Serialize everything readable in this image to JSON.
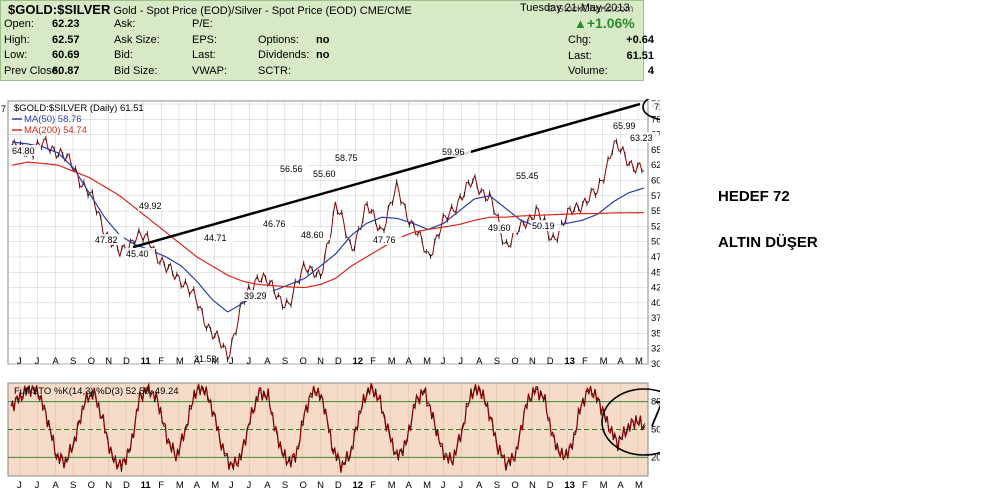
{
  "header": {
    "symbol": "$GOLD:$SILVER",
    "description": "Gold - Spot Price (EOD)/Silver - Spot Price (EOD)",
    "exchange": "CME/CME",
    "logo": "© StockCharts.com"
  },
  "quote": {
    "date": "Tuesday  21-May-2013",
    "change_pct": "+1.06%",
    "rows": [
      {
        "l1": "Open:",
        "v1": "62.23",
        "l2": "Ask:",
        "v2": "",
        "l3": "P/E:",
        "v3": "",
        "l4": "",
        "v4": ""
      },
      {
        "l1": "High:",
        "v1": "62.57",
        "l2": "Ask Size:",
        "v2": "",
        "l3": "EPS:",
        "v3": "",
        "l4": "Options:",
        "v4": "no"
      },
      {
        "l1": "Low:",
        "v1": "60.69",
        "l2": "Bid:",
        "v2": "",
        "l3": "Last:",
        "v3": "",
        "l4": "Dividends:",
        "v4": "no"
      },
      {
        "l1": "Prev Close:",
        "v1": "60.87",
        "l2": "Bid Size:",
        "v2": "",
        "l3": "VWAP:",
        "v3": "",
        "l4": "SCTR:",
        "v4": ""
      }
    ],
    "right": [
      {
        "label": "Chg:",
        "value": "+0.64"
      },
      {
        "label": "Last:",
        "value": "61.51"
      },
      {
        "label": "Volume:",
        "value": "4"
      }
    ]
  },
  "annotations": {
    "target": "HEDEF 72",
    "note": "ALTIN DÜŞER"
  },
  "colors": {
    "price": "#8b0000",
    "ma50": "#2b3fa8",
    "ma200": "#d42a1a",
    "trendline": "#000000",
    "panel_bg": "#f5c9a4",
    "sto_bg": "#f6dcc8",
    "sto_line": "#8b0000",
    "grid": "#c9c9c9"
  },
  "chart_data": [
    {
      "type": "line",
      "legend": [
        {
          "text": "$GOLD:$SILVER (Daily) 61.51"
        },
        {
          "text": "MA(50) 58.76"
        },
        {
          "text": "MA(200) 54.74"
        }
      ],
      "x_ticks": [
        "J",
        "J",
        "A",
        "S",
        "O",
        "N",
        "D",
        "11",
        "F",
        "M",
        "A",
        "M",
        "J",
        "J",
        "A",
        "S",
        "O",
        "N",
        "D",
        "12",
        "F",
        "M",
        "A",
        "M",
        "J",
        "J",
        "A",
        "S",
        "O",
        "N",
        "D",
        "13",
        "F",
        "M",
        "A",
        "M"
      ],
      "y_ticks": [
        "30.0",
        "32.5",
        "35.0",
        "37.5",
        "40.0",
        "42.5",
        "45.0",
        "47.5",
        "50.0",
        "52.5",
        "55.0",
        "57.5",
        "60.0",
        "62.5",
        "65.0",
        "67.5",
        "70.0",
        "72.5"
      ],
      "ylim": [
        30,
        73
      ],
      "axis_left_label": "7",
      "price_series": [
        65.5,
        64.8,
        65.8,
        65.0,
        62.0,
        58.0,
        52.0,
        47.82,
        51.0,
        49.92,
        45.4,
        44.0,
        40.0,
        35.0,
        31.53,
        40.0,
        44.71,
        42.0,
        39.29,
        46.76,
        43.5,
        56.56,
        48.6,
        55.6,
        52.0,
        58.75,
        52.5,
        47.76,
        53.0,
        57.0,
        59.96,
        57.0,
        49.6,
        52.0,
        55.45,
        50.19,
        54.0,
        56.5,
        58.0,
        65.99,
        63.23,
        61.51
      ],
      "ma50_series": [
        66.3,
        66.0,
        65.5,
        64.5,
        62.0,
        58.0,
        54.0,
        51.0,
        49.5,
        48.6,
        47.5,
        46.0,
        43.5,
        40.5,
        38.5,
        40.0,
        41.5,
        42.0,
        43.0,
        44.0,
        46.0,
        48.0,
        51.0,
        53.0,
        54.0,
        53.8,
        53.0,
        52.0,
        53.0,
        55.0,
        57.0,
        57.5,
        55.5,
        53.5,
        52.5,
        52.6,
        53.0,
        53.5,
        54.5,
        56.5,
        58.0,
        58.76
      ],
      "ma200_series": [
        62.5,
        63.0,
        62.8,
        62.5,
        61.5,
        60.5,
        59.0,
        57.5,
        55.5,
        53.5,
        51.5,
        49.5,
        47.5,
        46.0,
        44.5,
        43.5,
        43.0,
        42.8,
        42.6,
        42.5,
        43.0,
        44.0,
        46.0,
        47.5,
        49.0,
        50.5,
        51.5,
        52.0,
        52.4,
        52.8,
        53.5,
        54.0,
        54.0,
        54.2,
        54.3,
        54.4,
        54.5,
        54.6,
        54.6,
        54.7,
        54.72,
        54.74
      ],
      "trendline": {
        "start": 49.92,
        "end": 72.5
      },
      "data_labels": [
        "64.80",
        "47.82",
        "49.92",
        "45.40",
        "31.53",
        "44.71",
        "39.29",
        "46.76",
        "56.56",
        "48.60",
        "55.60",
        "58.75",
        "47.76",
        "59.96",
        "49.60",
        "55.45",
        "50.19",
        "65.99",
        "63.23",
        "72.5"
      ]
    },
    {
      "type": "line",
      "legend": [
        {
          "text": "Full STO %K(14,3) %D(3) 52.50, 49.24"
        }
      ],
      "y_ticks": [
        "20",
        "50",
        "80"
      ],
      "ylim": [
        0,
        100
      ],
      "k_series": [
        75,
        85,
        95,
        90,
        60,
        20,
        15,
        40,
        80,
        90,
        60,
        20,
        10,
        30,
        85,
        95,
        80,
        40,
        20,
        50,
        90,
        95,
        70,
        30,
        10,
        20,
        60,
        90,
        85,
        40,
        15,
        20,
        70,
        95,
        80,
        30,
        10,
        25,
        70,
        95,
        85,
        50,
        20,
        35,
        80,
        92,
        60,
        25,
        15,
        45,
        88,
        94,
        70,
        30,
        12,
        25,
        75,
        93,
        85,
        40,
        20,
        30,
        75,
        95,
        80,
        55,
        35,
        50,
        60,
        52.5
      ]
    }
  ]
}
